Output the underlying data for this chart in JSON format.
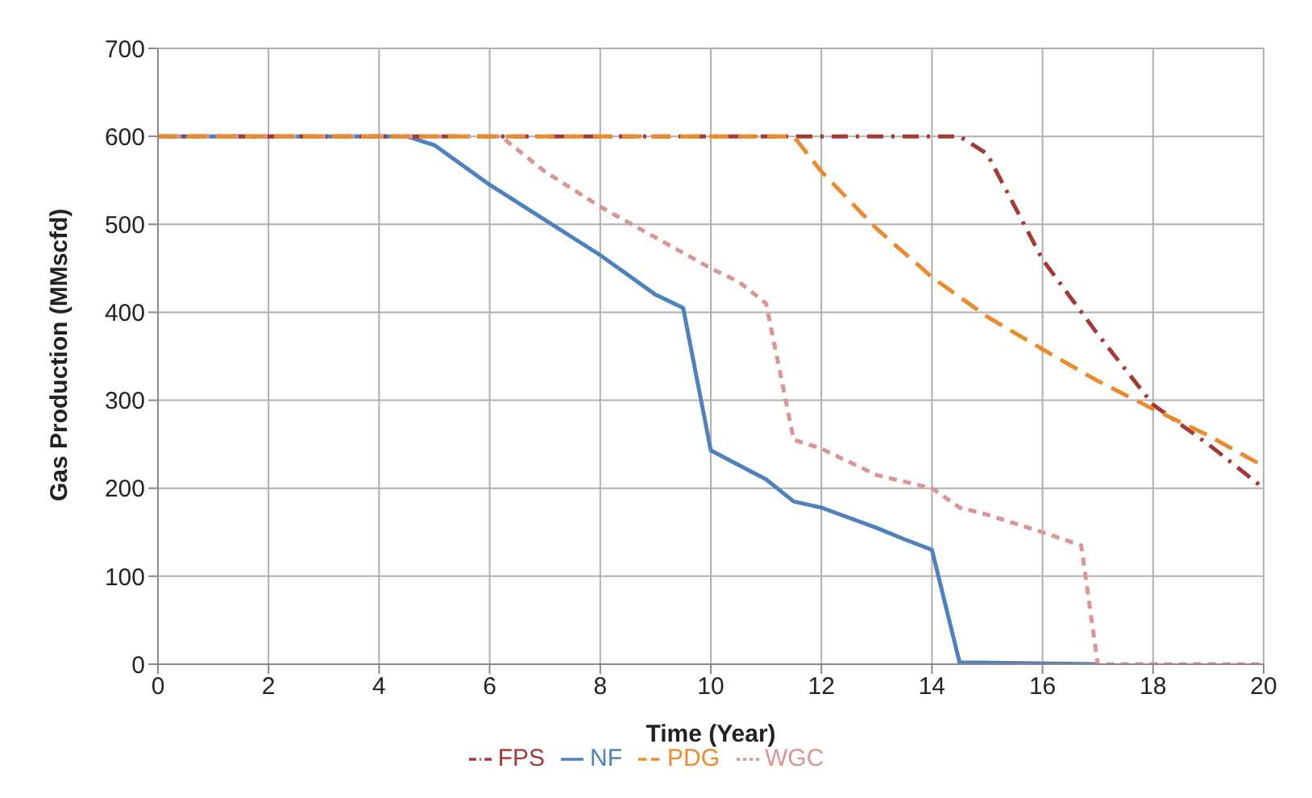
{
  "chart_data": {
    "type": "line",
    "xlabel": "Time (Year)",
    "ylabel": "Gas Production (MMscfd)",
    "xlim": [
      0,
      20
    ],
    "xticks": [
      0,
      2,
      4,
      6,
      8,
      10,
      12,
      14,
      16,
      18,
      20
    ],
    "ylim": [
      0,
      700
    ],
    "yticks": [
      0,
      100,
      200,
      300,
      400,
      500,
      600,
      700
    ],
    "grid": true,
    "legend": "bottom",
    "marker": "none",
    "series": [
      {
        "name": "NF",
        "color": "#4f81bd",
        "line_style": "solid",
        "x": [
          0,
          4.5,
          5,
          6,
          7,
          8,
          9,
          9.5,
          10,
          11,
          11.5,
          12,
          13,
          13.5,
          14,
          14.5,
          17
        ],
        "values": [
          600,
          600,
          590,
          545,
          505,
          465,
          420,
          405,
          243,
          210,
          185,
          178,
          155,
          142,
          130,
          2,
          0
        ]
      },
      {
        "name": "FPS",
        "color": "#a33a35",
        "line_style": "dashdot",
        "x": [
          0,
          14.5,
          15,
          16,
          17,
          18,
          19,
          20
        ],
        "values": [
          600,
          600,
          580,
          460,
          375,
          295,
          250,
          200
        ]
      },
      {
        "name": "WGC",
        "color": "#d99694",
        "line_style": "dashed",
        "x": [
          0,
          6.2,
          7,
          8,
          9,
          10,
          10.5,
          11,
          11.5,
          12,
          13,
          14,
          14.5,
          15,
          16,
          16.7,
          17,
          20
        ],
        "values": [
          600,
          600,
          560,
          520,
          485,
          450,
          435,
          410,
          255,
          245,
          215,
          200,
          178,
          170,
          150,
          135,
          0,
          0
        ]
      },
      {
        "name": "PDG",
        "color": "#e98b2e",
        "line_style": "longdash",
        "x": [
          0,
          11.5,
          12,
          13,
          14,
          15,
          16,
          17,
          18,
          19,
          20
        ],
        "values": [
          600,
          600,
          560,
          495,
          440,
          395,
          358,
          322,
          290,
          260,
          225
        ]
      }
    ]
  }
}
